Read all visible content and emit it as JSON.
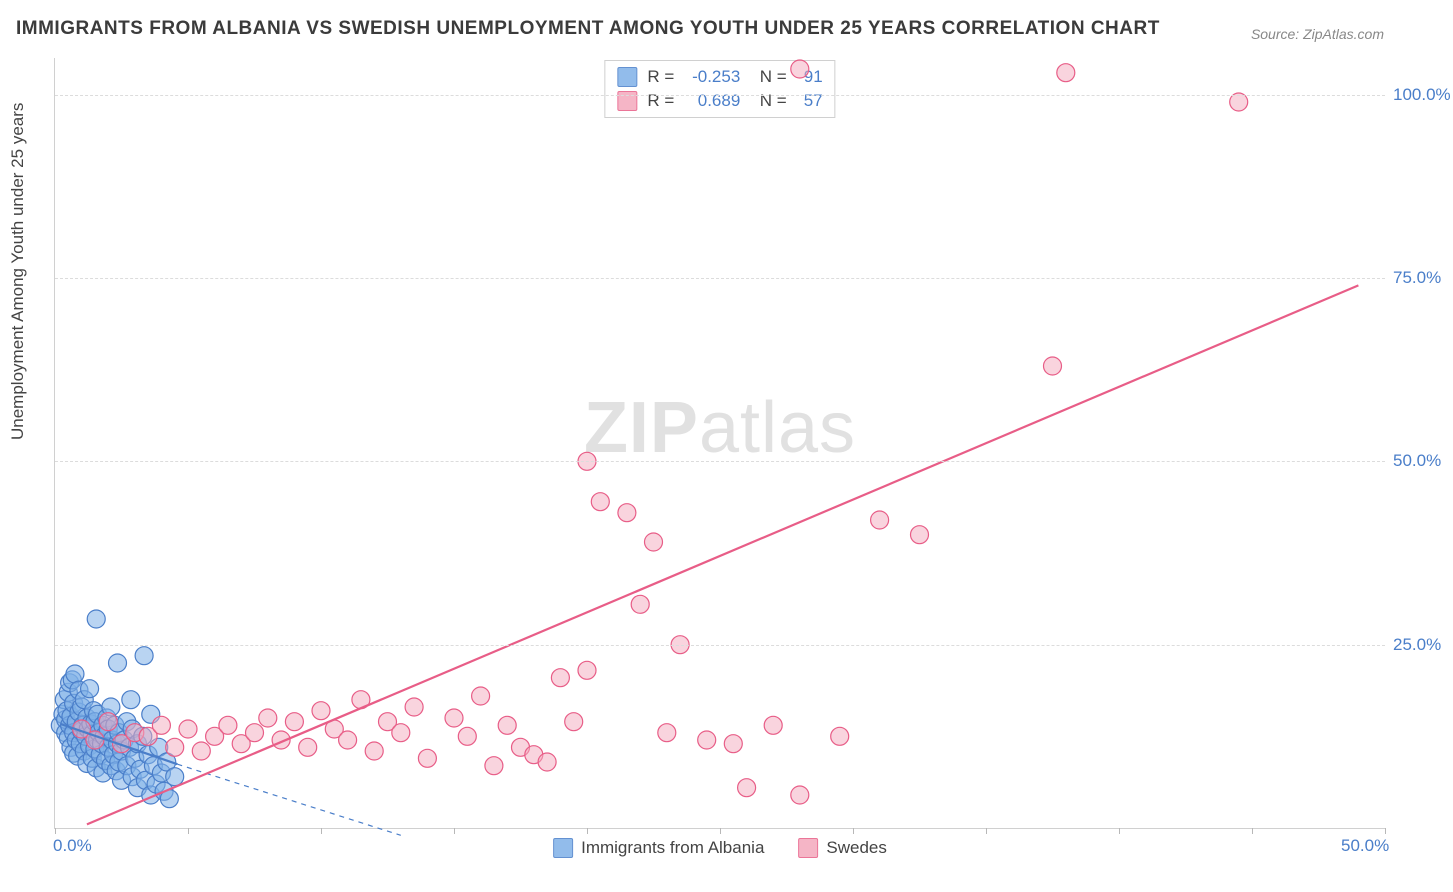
{
  "title": "IMMIGRANTS FROM ALBANIA VS SWEDISH UNEMPLOYMENT AMONG YOUTH UNDER 25 YEARS CORRELATION CHART",
  "source": "Source: ZipAtlas.com",
  "watermark_bold": "ZIP",
  "watermark_rest": "atlas",
  "chart": {
    "type": "scatter",
    "ylabel": "Unemployment Among Youth under 25 years",
    "background_color": "#ffffff",
    "grid_color": "#dcdcdc",
    "axis_color": "#d0d0d0",
    "tick_label_color": "#4a7ec9",
    "text_color": "#444444",
    "title_fontsize": 19,
    "label_fontsize": 17,
    "tick_fontsize": 17,
    "marker_radius": 9,
    "marker_stroke_width": 1.2,
    "trend_line_width": 2.2,
    "x": {
      "min": 0,
      "max": 50,
      "ticks": [
        0,
        5,
        10,
        15,
        20,
        25,
        30,
        35,
        40,
        45,
        50
      ],
      "tick_labels": {
        "0": "0.0%",
        "50": "50.0%"
      }
    },
    "y": {
      "min": 0,
      "max": 105,
      "ticks": [
        25,
        50,
        75,
        100
      ],
      "tick_labels": {
        "25": "25.0%",
        "50": "50.0%",
        "75": "75.0%",
        "100": "100.0%"
      }
    },
    "series": [
      {
        "id": "albania",
        "label": "Immigrants from Albania",
        "fill_color": "#7fb1e8",
        "fill_opacity": 0.55,
        "stroke_color": "#4a7ec9",
        "R": "-0.253",
        "N": "91",
        "trend": {
          "x1": 0.2,
          "y1": 14.2,
          "x2": 4.6,
          "y2": 8.7,
          "dash_ext": {
            "x2": 13.0,
            "y2": -1.0
          },
          "color": "#4a7ec9"
        },
        "points": [
          [
            0.2,
            14.0
          ],
          [
            0.3,
            15.5
          ],
          [
            0.35,
            17.5
          ],
          [
            0.4,
            13.0
          ],
          [
            0.4,
            14.8
          ],
          [
            0.45,
            16.0
          ],
          [
            0.5,
            12.3
          ],
          [
            0.5,
            18.5
          ],
          [
            0.55,
            14.0
          ],
          [
            0.55,
            19.8
          ],
          [
            0.6,
            11.0
          ],
          [
            0.6,
            15.2
          ],
          [
            0.65,
            20.2
          ],
          [
            0.7,
            10.2
          ],
          [
            0.7,
            13.0
          ],
          [
            0.7,
            17.0
          ],
          [
            0.75,
            21.0
          ],
          [
            0.8,
            12.0
          ],
          [
            0.8,
            14.5
          ],
          [
            0.85,
            9.8
          ],
          [
            0.9,
            15.8
          ],
          [
            0.9,
            18.8
          ],
          [
            0.95,
            11.5
          ],
          [
            1.0,
            13.2
          ],
          [
            1.0,
            16.5
          ],
          [
            1.05,
            14.0
          ],
          [
            1.1,
            10.5
          ],
          [
            1.1,
            17.5
          ],
          [
            1.15,
            12.5
          ],
          [
            1.2,
            8.8
          ],
          [
            1.2,
            15.0
          ],
          [
            1.25,
            13.5
          ],
          [
            1.3,
            11.2
          ],
          [
            1.3,
            19.0
          ],
          [
            1.35,
            14.2
          ],
          [
            1.4,
            9.5
          ],
          [
            1.4,
            12.8
          ],
          [
            1.45,
            16.0
          ],
          [
            1.5,
            10.8
          ],
          [
            1.5,
            14.5
          ],
          [
            1.55,
            8.2
          ],
          [
            1.6,
            12.0
          ],
          [
            1.6,
            15.5
          ],
          [
            1.65,
            13.0
          ],
          [
            1.7,
            10.0
          ],
          [
            1.75,
            11.5
          ],
          [
            1.8,
            14.0
          ],
          [
            1.8,
            7.5
          ],
          [
            1.85,
            12.5
          ],
          [
            1.9,
            9.2
          ],
          [
            1.95,
            15.0
          ],
          [
            2.0,
            11.0
          ],
          [
            2.0,
            13.5
          ],
          [
            2.1,
            8.5
          ],
          [
            2.1,
            16.5
          ],
          [
            2.15,
            12.0
          ],
          [
            2.2,
            10.0
          ],
          [
            2.25,
            14.0
          ],
          [
            2.3,
            7.8
          ],
          [
            2.35,
            11.5
          ],
          [
            2.4,
            9.0
          ],
          [
            2.4,
            13.0
          ],
          [
            2.5,
            10.5
          ],
          [
            2.5,
            6.5
          ],
          [
            2.6,
            12.0
          ],
          [
            2.7,
            8.5
          ],
          [
            2.7,
            14.5
          ],
          [
            2.8,
            11.0
          ],
          [
            2.9,
            7.0
          ],
          [
            2.9,
            13.5
          ],
          [
            3.0,
            9.5
          ],
          [
            3.1,
            5.5
          ],
          [
            3.1,
            11.5
          ],
          [
            3.2,
            8.0
          ],
          [
            3.3,
            12.5
          ],
          [
            3.4,
            6.5
          ],
          [
            3.5,
            10.0
          ],
          [
            3.6,
            4.5
          ],
          [
            3.7,
            8.5
          ],
          [
            3.8,
            6.0
          ],
          [
            3.9,
            11.0
          ],
          [
            4.0,
            7.5
          ],
          [
            4.1,
            5.0
          ],
          [
            4.2,
            9.0
          ],
          [
            4.3,
            4.0
          ],
          [
            4.5,
            7.0
          ],
          [
            1.55,
            28.5
          ],
          [
            2.35,
            22.5
          ],
          [
            2.85,
            17.5
          ],
          [
            3.35,
            23.5
          ],
          [
            3.6,
            15.5
          ]
        ]
      },
      {
        "id": "swedes",
        "label": "Swedes",
        "fill_color": "#f4a9bd",
        "fill_opacity": 0.5,
        "stroke_color": "#e85d87",
        "R": "0.689",
        "N": "57",
        "trend": {
          "x1": 1.2,
          "y1": 0.5,
          "x2": 49.0,
          "y2": 74.0,
          "color": "#e85d87"
        },
        "points": [
          [
            1.0,
            13.5
          ],
          [
            1.5,
            12.0
          ],
          [
            2.0,
            14.5
          ],
          [
            2.5,
            11.5
          ],
          [
            3.0,
            13.0
          ],
          [
            3.5,
            12.5
          ],
          [
            4.0,
            14.0
          ],
          [
            4.5,
            11.0
          ],
          [
            5.0,
            13.5
          ],
          [
            5.5,
            10.5
          ],
          [
            6.0,
            12.5
          ],
          [
            6.5,
            14.0
          ],
          [
            7.0,
            11.5
          ],
          [
            7.5,
            13.0
          ],
          [
            8.0,
            15.0
          ],
          [
            8.5,
            12.0
          ],
          [
            9.0,
            14.5
          ],
          [
            9.5,
            11.0
          ],
          [
            10.0,
            16.0
          ],
          [
            10.5,
            13.5
          ],
          [
            11.0,
            12.0
          ],
          [
            11.5,
            17.5
          ],
          [
            12.0,
            10.5
          ],
          [
            12.5,
            14.5
          ],
          [
            13.0,
            13.0
          ],
          [
            13.5,
            16.5
          ],
          [
            14.0,
            9.5
          ],
          [
            15.0,
            15.0
          ],
          [
            15.5,
            12.5
          ],
          [
            16.0,
            18.0
          ],
          [
            16.5,
            8.5
          ],
          [
            17.0,
            14.0
          ],
          [
            17.5,
            11.0
          ],
          [
            18.0,
            10.0
          ],
          [
            18.5,
            9.0
          ],
          [
            19.0,
            20.5
          ],
          [
            19.5,
            14.5
          ],
          [
            20.0,
            50.0
          ],
          [
            20.5,
            44.5
          ],
          [
            21.5,
            43.0
          ],
          [
            22.0,
            30.5
          ],
          [
            22.5,
            39.0
          ],
          [
            23.0,
            13.0
          ],
          [
            23.5,
            25.0
          ],
          [
            24.5,
            12.0
          ],
          [
            25.5,
            11.5
          ],
          [
            26.0,
            5.5
          ],
          [
            27.0,
            14.0
          ],
          [
            28.0,
            4.5
          ],
          [
            29.5,
            12.5
          ],
          [
            31.0,
            42.0
          ],
          [
            32.5,
            40.0
          ],
          [
            37.5,
            63.0
          ],
          [
            38.0,
            103.0
          ],
          [
            44.5,
            99.0
          ],
          [
            28.0,
            103.5
          ],
          [
            20.0,
            21.5
          ]
        ]
      }
    ]
  }
}
